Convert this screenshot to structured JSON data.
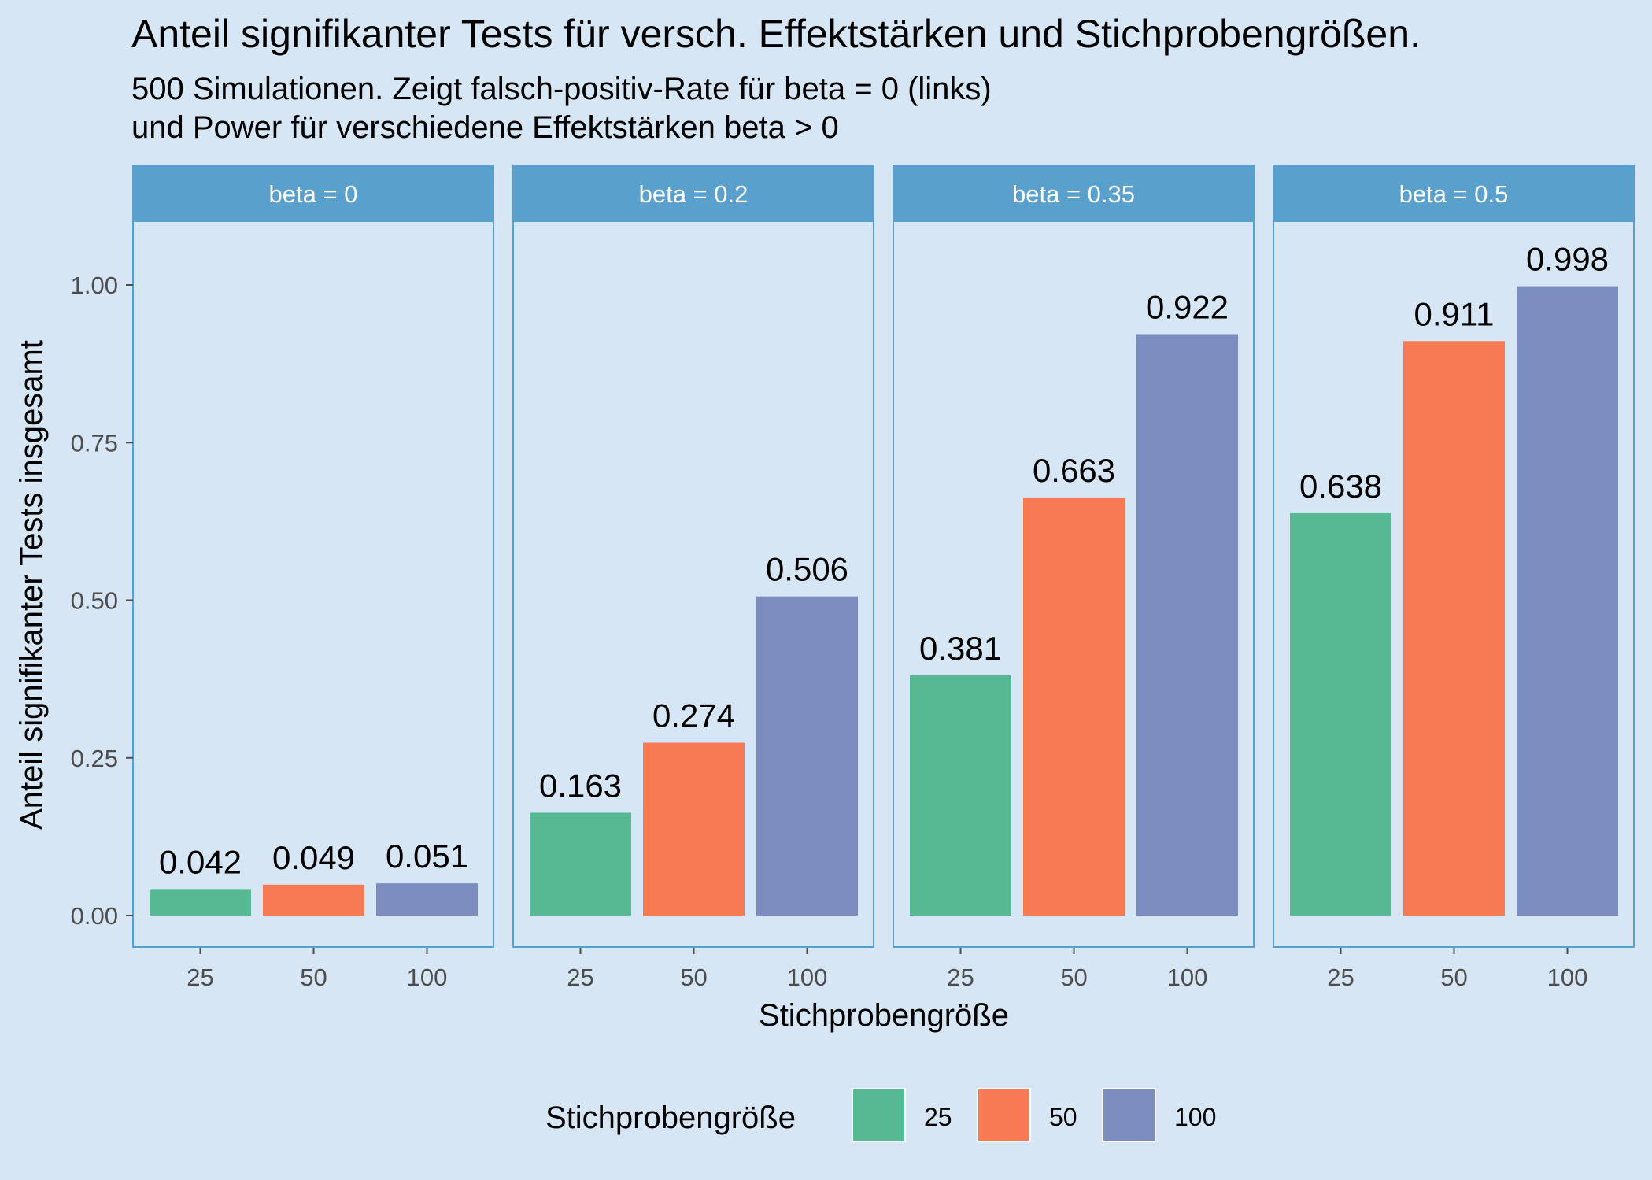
{
  "chart_data": {
    "type": "bar",
    "title": "Anteil signifikanter Tests für versch. Effektstärken und Stichprobengrößen.",
    "subtitle_lines": [
      "500 Simulationen. Zeigt falsch-positiv-Rate für beta = 0 (links)",
      "und Power für verschiedene Effektstärken beta > 0"
    ],
    "xlabel": "Stichprobengröße",
    "ylabel": "Anteil signifikanter Tests insgesamt",
    "ylim": [
      0,
      1.1
    ],
    "y_ticks": [
      "0.00",
      "0.25",
      "0.50",
      "0.75",
      "1.00"
    ],
    "grid": false,
    "legend": {
      "title": "Stichprobengröße",
      "placement": "bottom",
      "entries": [
        "25",
        "50",
        "100"
      ]
    },
    "categories": [
      "25",
      "50",
      "100"
    ],
    "colors": {
      "25": "#57b994",
      "50": "#f87a52",
      "100": "#7b8dbe",
      "strip": "#5aa0cd",
      "panel_border": "#5aa0cd",
      "background": "#d6e6f4"
    },
    "facets": [
      {
        "label": "beta = 0",
        "values": [
          0.042,
          0.049,
          0.051
        ],
        "value_labels": [
          "0.042",
          "0.049",
          "0.051"
        ]
      },
      {
        "label": "beta = 0.2",
        "values": [
          0.163,
          0.274,
          0.506
        ],
        "value_labels": [
          "0.163",
          "0.274",
          "0.506"
        ]
      },
      {
        "label": "beta = 0.35",
        "values": [
          0.381,
          0.663,
          0.922
        ],
        "value_labels": [
          "0.381",
          "0.663",
          "0.922"
        ]
      },
      {
        "label": "beta = 0.5",
        "values": [
          0.638,
          0.911,
          0.998
        ],
        "value_labels": [
          "0.638",
          "0.911",
          "0.998"
        ]
      }
    ]
  }
}
